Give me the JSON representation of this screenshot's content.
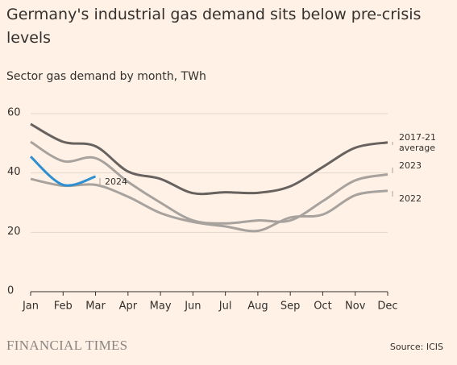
{
  "chart_data": {
    "type": "line",
    "title": "Germany's industrial gas demand sits below pre-crisis levels",
    "subtitle": "Sector gas demand by month, TWh",
    "categories": [
      "Jan",
      "Feb",
      "Mar",
      "Apr",
      "May",
      "Jun",
      "Jul",
      "Aug",
      "Sep",
      "Oct",
      "Nov",
      "Dec"
    ],
    "series": [
      {
        "name": "2017-21 average",
        "color": "#676260",
        "values": [
          56.5,
          50.5,
          49,
          40.5,
          38,
          33.2,
          33.5,
          33.3,
          35.5,
          42,
          48.5,
          50.3
        ]
      },
      {
        "name": "2023",
        "color": "#a7a29e",
        "values": [
          50.5,
          44,
          45,
          37,
          30,
          24,
          23,
          24,
          24,
          30.5,
          37.5,
          39.5
        ]
      },
      {
        "name": "2022",
        "color": "#a7a29e",
        "values": [
          38,
          35.7,
          36,
          32,
          26.5,
          23.5,
          22,
          20.5,
          25,
          26,
          32.5,
          34
        ]
      },
      {
        "name": "2024",
        "color": "#2f8fd0",
        "values": [
          45.5,
          36,
          38.8,
          null,
          null,
          null,
          null,
          null,
          null,
          null,
          null,
          null
        ]
      }
    ],
    "ylim": [
      0,
      60
    ],
    "yticks": [
      0,
      20,
      40,
      60
    ],
    "grid": true,
    "brand": "FINANCIAL TIMES",
    "source": "Source: ICIS"
  }
}
